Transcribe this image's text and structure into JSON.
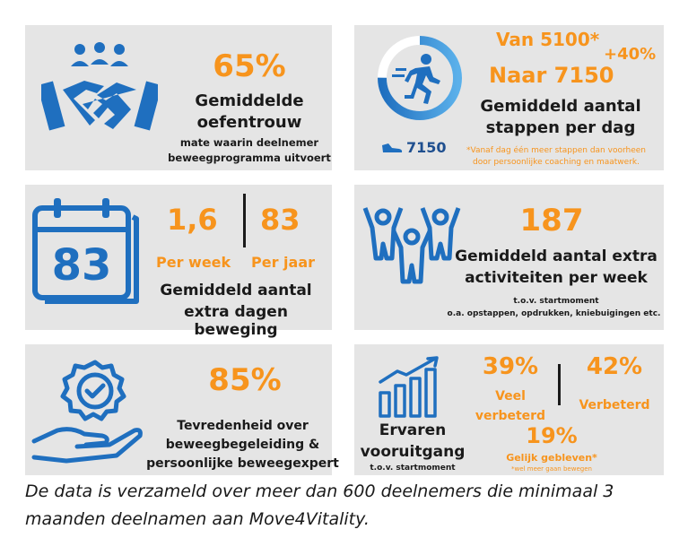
{
  "card1": {
    "percent": "65%",
    "title_line1": "Gemiddelde",
    "title_line2": "oefentrouw",
    "sub_line1": "mate waarin deelnemer",
    "sub_line2": "beweegprogramma uitvoert"
  },
  "card2": {
    "from": "Van 5100*",
    "to": "Naar 7150",
    "increase": "+40%",
    "title_line1": "Gemiddeld aantal",
    "title_line2": "stappen per dag",
    "steps": "7150",
    "note_line1": "*Vanaf dag één meer stappen dan voorheen",
    "note_line2": "door persoonlijke coaching en maatwerk.",
    "ring_fraction": 0.75
  },
  "card3": {
    "calendar_number": "83",
    "week_value": "1,6",
    "year_value": "83",
    "week_label": "Per week",
    "year_label": "Per jaar",
    "title_line1": "Gemiddeld aantal",
    "title_line2": "extra dagen beweging"
  },
  "card4": {
    "value": "187",
    "title_line1": "Gemiddeld aantal extra",
    "title_line2": "activiteiten per week",
    "sub_line1": "t.o.v. startmoment",
    "sub_line2": "o.a. opstappen, opdrukken, kniebuigingen etc."
  },
  "card5": {
    "percent": "85%",
    "title_line1": "Tevredenheid over",
    "title_line2": "beweegbegeleiding &",
    "title_line3": "persoonlijke beweegexpert"
  },
  "card6": {
    "title_line1": "Ervaren",
    "title_line2": "vooruitgang",
    "sub": "t.o.v. startmoment",
    "much_percent": "39%",
    "much_line1": "Veel",
    "much_line2": "verbeterd",
    "improved_percent": "42%",
    "improved_label": "Verbeterd",
    "same_percent": "19%",
    "same_label": "Gelijk gebleven*",
    "same_note": "*wel meer gaan bewegen"
  },
  "footer": {
    "line1": "De data is verzameld over meer dan 600 deelnemers die minimaal 3",
    "line2": "maanden deelnamen aan Move4Vitality."
  },
  "colors": {
    "accent": "#f7941d",
    "icon_blue": "#1f6fbf",
    "card_bg": "#e5e5e5"
  },
  "icons": [
    "handshake-icon",
    "running-icon",
    "shoe-icon",
    "calendar-icon",
    "people-cheering-icon",
    "hand-badge-icon",
    "growth-chart-icon"
  ]
}
